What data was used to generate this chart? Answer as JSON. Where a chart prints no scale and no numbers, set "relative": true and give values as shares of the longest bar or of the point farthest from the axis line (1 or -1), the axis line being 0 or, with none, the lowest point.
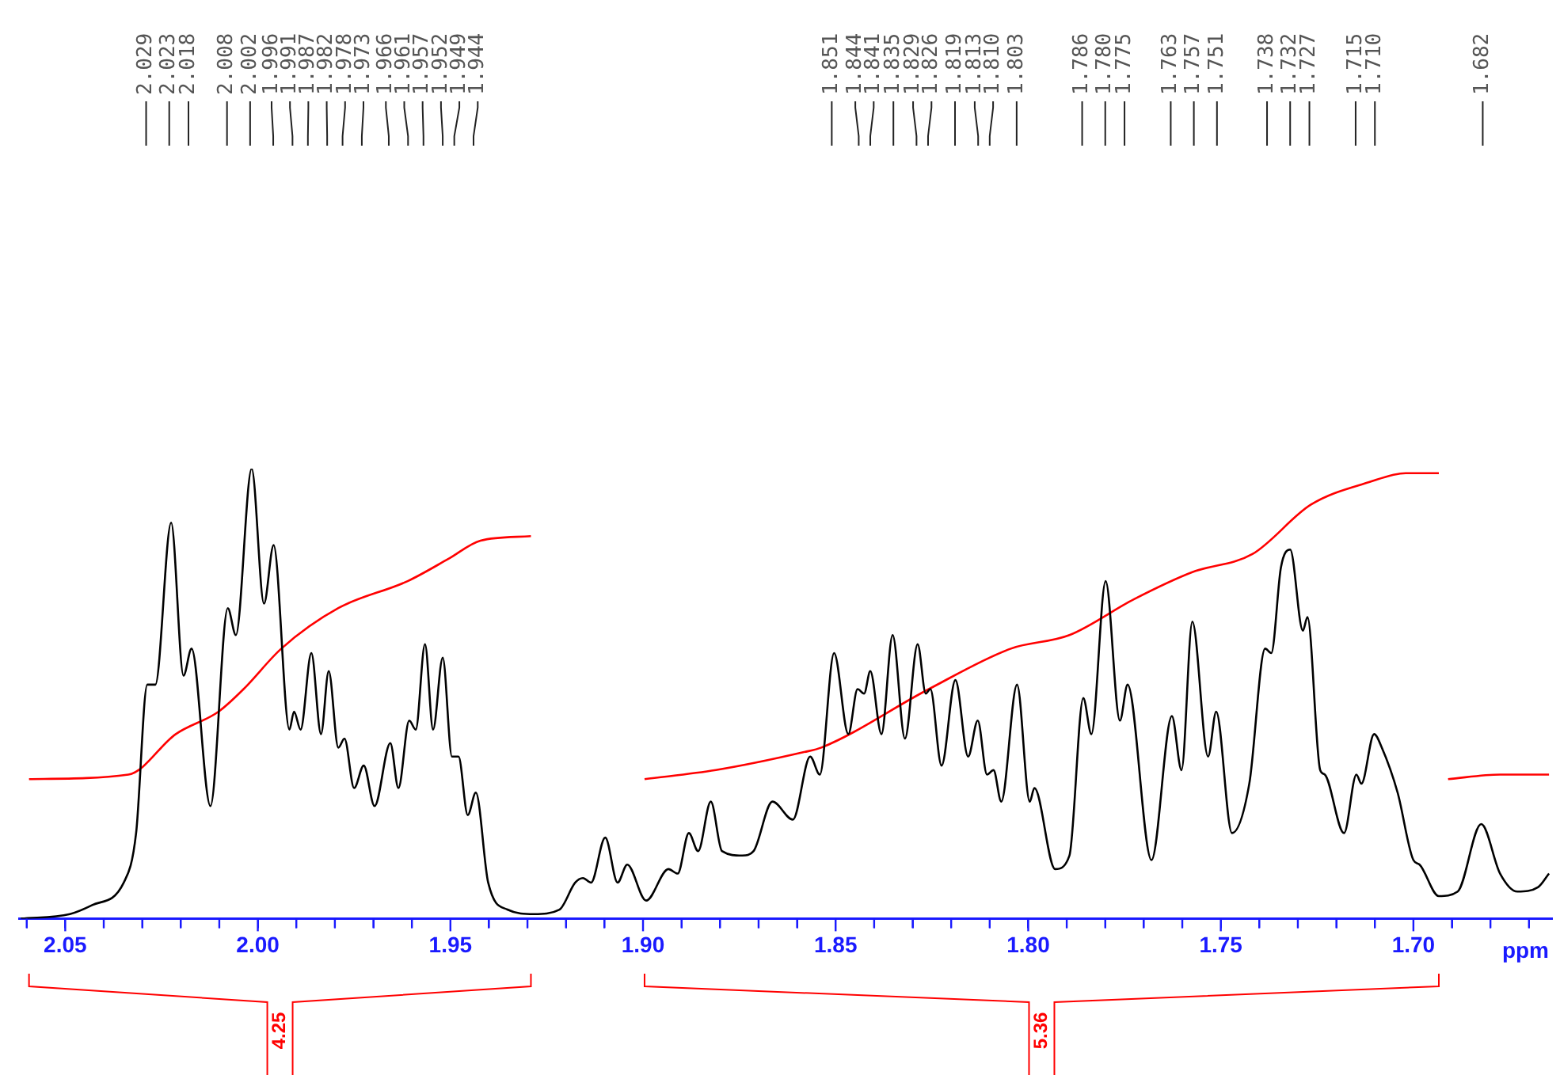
{
  "chart_data": {
    "type": "line",
    "relative": true,
    "marker": "none",
    "xlabel": "ppm",
    "xlim": [
      2.062,
      1.664
    ],
    "xticks": [
      {
        "value": 2.06,
        "label": null
      },
      2.05,
      {
        "value": 2.04,
        "label": null
      },
      {
        "value": 2.03,
        "label": null
      },
      {
        "value": 2.02,
        "label": null
      },
      {
        "value": 2.01,
        "label": null
      },
      {
        "value": 2.0,
        "label": "2.00"
      },
      {
        "value": 1.99,
        "label": null
      },
      {
        "value": 1.98,
        "label": null
      },
      {
        "value": 1.97,
        "label": null
      },
      {
        "value": 1.96,
        "label": null
      },
      1.95,
      {
        "value": 1.94,
        "label": null
      },
      {
        "value": 1.93,
        "label": null
      },
      {
        "value": 1.92,
        "label": null
      },
      {
        "value": 1.91,
        "label": null
      },
      {
        "value": 1.9,
        "label": "1.90"
      },
      {
        "value": 1.89,
        "label": null
      },
      {
        "value": 1.88,
        "label": null
      },
      {
        "value": 1.87,
        "label": null
      },
      {
        "value": 1.86,
        "label": null
      },
      1.85,
      {
        "value": 1.84,
        "label": null
      },
      {
        "value": 1.83,
        "label": null
      },
      {
        "value": 1.82,
        "label": null
      },
      {
        "value": 1.81,
        "label": null
      },
      {
        "value": 1.8,
        "label": "1.80"
      },
      {
        "value": 1.79,
        "label": null
      },
      {
        "value": 1.78,
        "label": null
      },
      {
        "value": 1.77,
        "label": null
      },
      {
        "value": 1.76,
        "label": null
      },
      1.75,
      {
        "value": 1.74,
        "label": null
      },
      {
        "value": 1.73,
        "label": null
      },
      {
        "value": 1.72,
        "label": null
      },
      {
        "value": 1.71,
        "label": null
      },
      {
        "value": 1.7,
        "label": "1.70"
      },
      {
        "value": 1.69,
        "label": null
      },
      {
        "value": 1.68,
        "label": null
      },
      {
        "value": 1.67,
        "label": null
      }
    ],
    "series": [
      {
        "color": "#000000",
        "x": [
          2.0615,
          2.0488,
          2.043,
          2.0348,
          2.0316,
          2.0287,
          2.0266,
          2.0225,
          2.0193,
          2.0172,
          2.0123,
          2.0078,
          2.0057,
          2.0016,
          1.9984,
          1.9959,
          1.9918,
          1.9906,
          1.9889,
          1.9861,
          1.9836,
          1.9816,
          1.9791,
          1.9775,
          1.975,
          1.9725,
          1.9697,
          1.9656,
          1.9635,
          1.9607,
          1.959,
          1.9566,
          1.9545,
          1.952,
          1.9496,
          1.9479,
          1.9455,
          1.9434,
          1.9402,
          1.9352,
          1.9283,
          1.9217,
          1.9176,
          1.9156,
          1.9135,
          1.9098,
          1.9066,
          1.9041,
          1.8992,
          1.8934,
          1.891,
          1.8881,
          1.8857,
          1.8824,
          1.8795,
          1.8742,
          1.8713,
          1.8664,
          1.8611,
          1.8566,
          1.8541,
          1.8504,
          1.8467,
          1.8443,
          1.8426,
          1.841,
          1.8381,
          1.8352,
          1.832,
          1.8287,
          1.8266,
          1.8254,
          1.8225,
          1.8189,
          1.8156,
          1.8131,
          1.8107,
          1.809,
          1.807,
          1.8029,
          1.7996,
          1.7984,
          1.793,
          1.7893,
          1.7857,
          1.7836,
          1.7799,
          1.7762,
          1.7742,
          1.768,
          1.7627,
          1.7602,
          1.7574,
          1.7533,
          1.7512,
          1.7471,
          1.7426,
          1.7385,
          1.7369,
          1.7344,
          1.732,
          1.7287,
          1.7275,
          1.7242,
          1.723,
          1.718,
          1.7148,
          1.7135,
          1.7102,
          1.7082,
          1.7041,
          1.7,
          1.6984,
          1.6934,
          1.6885,
          1.6824,
          1.6775,
          1.673,
          1.6676,
          1.6648
        ],
        "values": [
          0.0,
          0.01,
          0.03,
          0.08,
          0.19,
          0.52,
          0.52,
          0.88,
          0.54,
          0.6,
          0.25,
          0.69,
          0.63,
          1.0,
          0.7,
          0.83,
          0.42,
          0.46,
          0.42,
          0.59,
          0.41,
          0.55,
          0.38,
          0.4,
          0.29,
          0.34,
          0.25,
          0.39,
          0.29,
          0.44,
          0.42,
          0.61,
          0.42,
          0.58,
          0.36,
          0.36,
          0.23,
          0.28,
          0.08,
          0.02,
          0.01,
          0.02,
          0.08,
          0.09,
          0.08,
          0.18,
          0.08,
          0.12,
          0.04,
          0.11,
          0.1,
          0.19,
          0.15,
          0.26,
          0.15,
          0.14,
          0.15,
          0.26,
          0.22,
          0.36,
          0.32,
          0.59,
          0.41,
          0.51,
          0.5,
          0.55,
          0.41,
          0.63,
          0.4,
          0.61,
          0.5,
          0.51,
          0.34,
          0.53,
          0.36,
          0.44,
          0.32,
          0.33,
          0.26,
          0.52,
          0.26,
          0.29,
          0.11,
          0.14,
          0.49,
          0.41,
          0.75,
          0.44,
          0.52,
          0.13,
          0.45,
          0.33,
          0.66,
          0.36,
          0.46,
          0.19,
          0.3,
          0.6,
          0.59,
          0.78,
          0.82,
          0.64,
          0.67,
          0.33,
          0.32,
          0.19,
          0.32,
          0.3,
          0.41,
          0.38,
          0.28,
          0.13,
          0.12,
          0.05,
          0.06,
          0.21,
          0.1,
          0.06,
          0.07,
          0.1
        ]
      },
      {
        "color": "#ff0000",
        "x": [
          2.0594,
          2.0336,
          2.0213,
          2.0102,
          2.0037,
          1.9939,
          1.9791,
          1.9611,
          1.9504,
          1.9422,
          1.9291
        ],
        "values": [
          0.31,
          0.32,
          0.41,
          0.46,
          0.51,
          0.6,
          0.69,
          0.75,
          0.8,
          0.84,
          0.85
        ]
      },
      {
        "color": "#ff0000",
        "x": [
          1.8996,
          1.8811,
          1.8582,
          1.8537,
          1.8258,
          1.8045,
          1.7893,
          1.7725,
          1.7574,
          1.7418,
          1.7266,
          1.7115,
          1.702,
          1.6934
        ],
        "values": [
          0.31,
          0.33,
          0.37,
          0.38,
          0.51,
          0.6,
          0.63,
          0.71,
          0.77,
          0.81,
          0.92,
          0.97,
          0.99,
          0.99
        ]
      },
      {
        "color": "#ff0000",
        "x": [
          1.691,
          1.6775,
          1.6648
        ],
        "values": [
          0.31,
          0.32,
          0.32
        ]
      }
    ],
    "annotations": [
      "4.25",
      "5.36",
      {
        "text": "2.029",
        "x": 2.029
      },
      {
        "text": "2.023",
        "x": 2.023
      },
      {
        "text": "2.018",
        "x": 2.018
      },
      {
        "text": "2.008",
        "x": 2.008
      },
      {
        "text": "2.002",
        "x": 2.002
      },
      {
        "text": "1.996",
        "x": 1.996
      },
      {
        "text": "1.991",
        "x": 1.991
      },
      {
        "text": "1.987",
        "x": 1.987
      },
      {
        "text": "1.982",
        "x": 1.982
      },
      {
        "text": "1.978",
        "x": 1.978
      },
      {
        "text": "1.973",
        "x": 1.973
      },
      {
        "text": "1.966",
        "x": 1.966
      },
      {
        "text": "1.961",
        "x": 1.961
      },
      {
        "text": "1.957",
        "x": 1.957
      },
      {
        "text": "1.952",
        "x": 1.952
      },
      {
        "text": "1.949",
        "x": 1.949
      },
      {
        "text": "1.944",
        "x": 1.944
      },
      {
        "text": "1.851",
        "x": 1.851
      },
      {
        "text": "1.844",
        "x": 1.844
      },
      {
        "text": "1.841",
        "x": 1.841
      },
      {
        "text": "1.835",
        "x": 1.835
      },
      {
        "text": "1.829",
        "x": 1.829
      },
      {
        "text": "1.826",
        "x": 1.826
      },
      {
        "text": "1.819",
        "x": 1.819
      },
      {
        "text": "1.813",
        "x": 1.813
      },
      {
        "text": "1.810",
        "x": 1.81
      },
      {
        "text": "1.803",
        "x": 1.803
      },
      {
        "text": "1.786",
        "x": 1.786
      },
      {
        "text": "1.780",
        "x": 1.78
      },
      {
        "text": "1.775",
        "x": 1.775
      },
      {
        "text": "1.763",
        "x": 1.763
      },
      {
        "text": "1.757",
        "x": 1.757
      },
      {
        "text": "1.751",
        "x": 1.751
      },
      {
        "text": "1.738",
        "x": 1.738
      },
      {
        "text": "1.732",
        "x": 1.732
      },
      {
        "text": "1.727",
        "x": 1.727
      },
      {
        "text": "1.715",
        "x": 1.715
      },
      {
        "text": "1.710",
        "x": 1.71
      },
      {
        "text": "1.682",
        "x": 1.682
      }
    ]
  }
}
